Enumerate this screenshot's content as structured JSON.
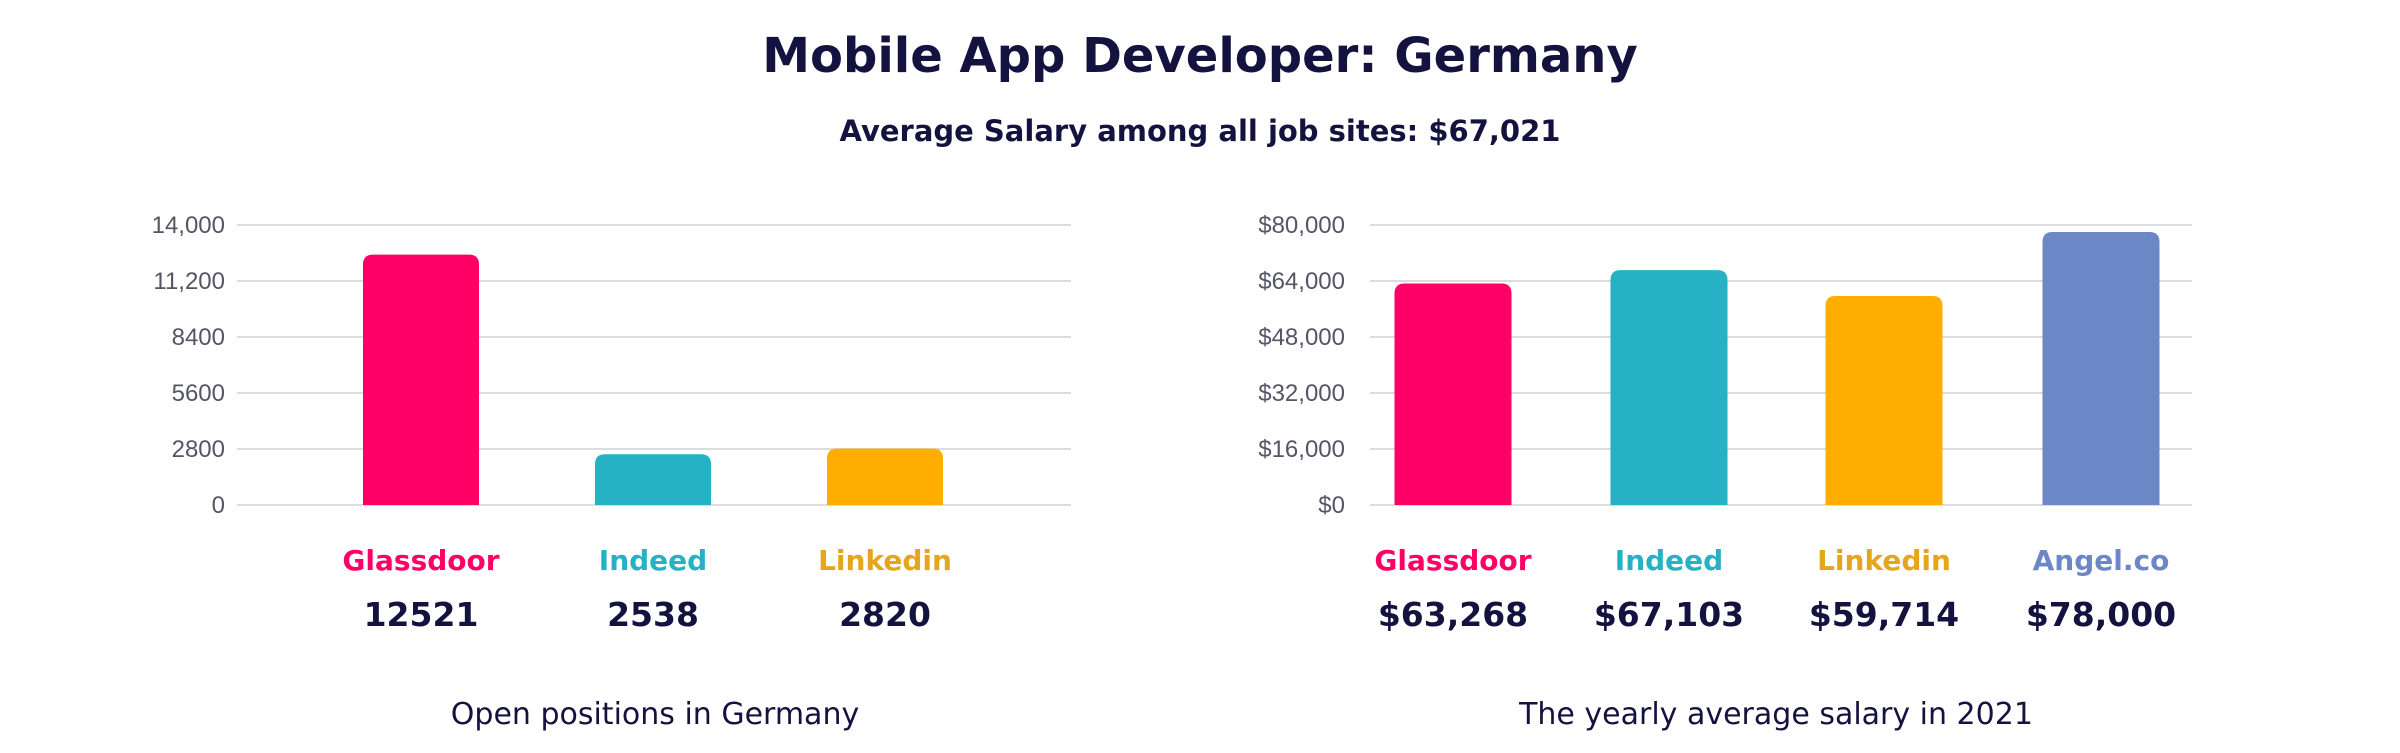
{
  "title": "Mobile App Developer: Germany",
  "subtitle": "Average Salary among all job sites: $67,021",
  "chart_data": [
    {
      "type": "bar",
      "title": "Open positions in Germany",
      "categories": [
        "Glassdoor",
        "Indeed",
        "Linkedin"
      ],
      "values": [
        12521,
        2538,
        2820
      ],
      "value_labels": [
        "12521",
        "2538",
        "2820"
      ],
      "colors": [
        "#ff0066",
        "#26b2c4",
        "#ffae00"
      ],
      "label_colors": [
        "#ff0066",
        "#26b2c4",
        "#e6a61c"
      ],
      "ylim": [
        0,
        14000
      ],
      "yticks": [
        0,
        2800,
        5600,
        8400,
        11200,
        14000
      ],
      "ytick_labels": [
        "0",
        "2800",
        "5600",
        "8400",
        "11,200",
        "14,000"
      ],
      "grid": true
    },
    {
      "type": "bar",
      "title": "The yearly average salary in 2021",
      "categories": [
        "Glassdoor",
        "Indeed",
        "Linkedin",
        "Angel.co"
      ],
      "values": [
        63268,
        67103,
        59714,
        78000
      ],
      "value_labels": [
        "$63,268",
        "$67,103",
        "$59,714",
        "$78,000"
      ],
      "colors": [
        "#ff0066",
        "#26b2c4",
        "#ffae00",
        "#6c87c6"
      ],
      "label_colors": [
        "#ff0066",
        "#26b2c4",
        "#e6a61c",
        "#6c87c6"
      ],
      "ylim": [
        0,
        80000
      ],
      "yticks": [
        0,
        16000,
        32000,
        48000,
        64000,
        80000
      ],
      "ytick_labels": [
        "$0",
        "$16,000",
        "$32,000",
        "$48,000",
        "$64,000",
        "$80,000"
      ],
      "grid": true
    }
  ]
}
